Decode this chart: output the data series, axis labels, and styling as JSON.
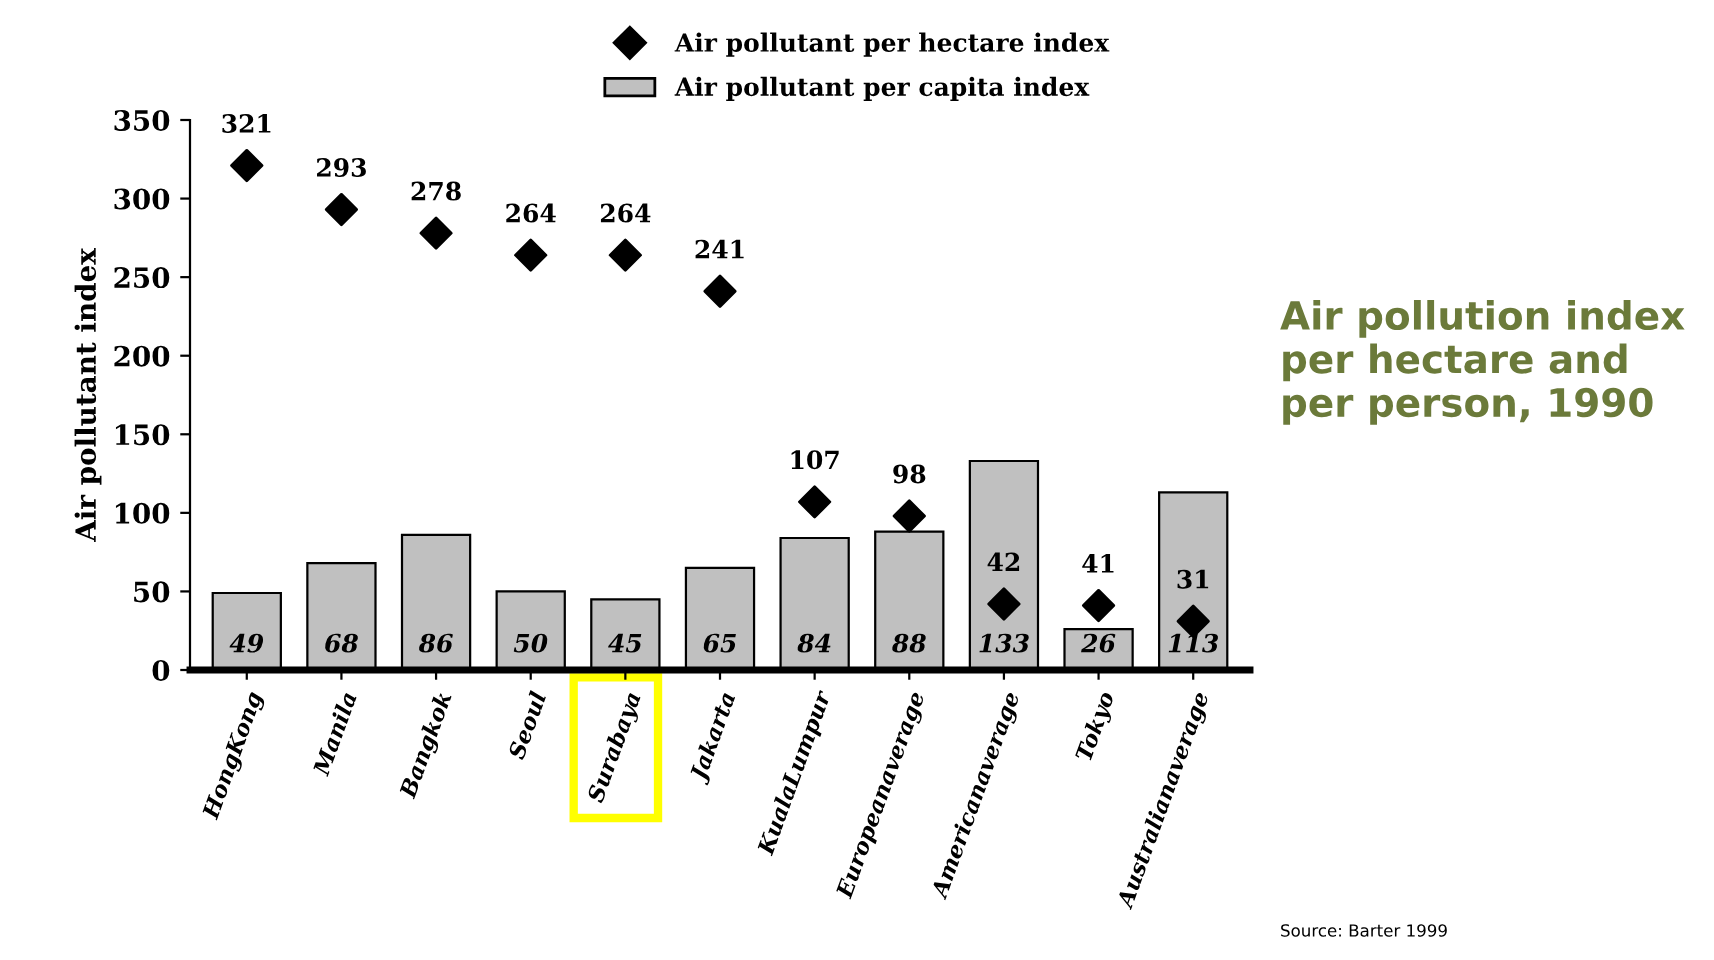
{
  "chart_data": {
    "type": "bar",
    "title": "Air pollution index per hectare and per person, 1990",
    "ylabel": "Air pollutant index",
    "categories": [
      "HongKong",
      "Manila",
      "Bangkok",
      "Seoul",
      "Surabaya",
      "Jakarta",
      "KualaLumpur",
      "Europeanaverage",
      "Americanaverage",
      "Tokyo",
      "Australianaverage"
    ],
    "series": [
      {
        "name": "Air pollutant per hectare index",
        "type": "scatter",
        "color": "#000000",
        "values": [
          321,
          293,
          278,
          264,
          264,
          241,
          107,
          98,
          42,
          41,
          31
        ]
      },
      {
        "name": "Air pollutant per capita index",
        "color": "#c0c0c0",
        "values": [
          49,
          68,
          86,
          50,
          45,
          65,
          84,
          88,
          133,
          26,
          113
        ]
      }
    ],
    "ylim": [
      0,
      350
    ],
    "yticks": [
      0,
      50,
      100,
      150,
      200,
      250,
      300,
      350
    ],
    "marker": "diamond",
    "data_labels": true,
    "legend": "top",
    "grid": false,
    "annotations": [
      "Source: Barter 1999"
    ]
  }
}
